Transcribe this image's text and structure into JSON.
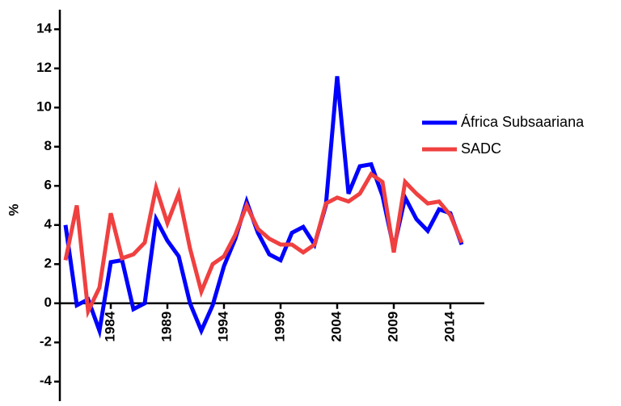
{
  "chart_data": {
    "type": "line",
    "ylabel": "%",
    "x": [
      1980,
      1981,
      1982,
      1983,
      1984,
      1985,
      1986,
      1987,
      1988,
      1989,
      1990,
      1991,
      1992,
      1993,
      1994,
      1995,
      1996,
      1997,
      1998,
      1999,
      2000,
      2001,
      2002,
      2003,
      2004,
      2005,
      2006,
      2007,
      2008,
      2009,
      2010,
      2011,
      2012,
      2013,
      2014,
      2015
    ],
    "series": [
      {
        "name": "África Subsaariana",
        "color": "#0000ff",
        "values": [
          4.0,
          -0.1,
          0.2,
          -1.4,
          2.1,
          2.2,
          -0.3,
          0.0,
          4.3,
          3.2,
          2.4,
          0.0,
          -1.4,
          -0.1,
          1.9,
          3.3,
          5.2,
          3.6,
          2.5,
          2.2,
          3.6,
          3.9,
          3.0,
          5.0,
          11.6,
          5.6,
          7.0,
          7.1,
          5.5,
          2.8,
          5.4,
          4.3,
          3.7,
          4.8,
          4.6,
          3.0
        ]
      },
      {
        "name": "SADC",
        "color": "#f04040",
        "values": [
          2.2,
          5.0,
          -0.4,
          0.8,
          4.6,
          2.3,
          2.5,
          3.1,
          5.9,
          4.1,
          5.6,
          2.8,
          0.6,
          2.0,
          2.4,
          3.5,
          5.0,
          3.8,
          3.3,
          3.0,
          3.0,
          2.6,
          3.0,
          5.1,
          5.4,
          5.2,
          5.6,
          6.6,
          6.2,
          2.6,
          6.2,
          5.6,
          5.1,
          5.2,
          4.5,
          3.1
        ]
      }
    ],
    "xlim": [
      1979.5,
      2017
    ],
    "xticks": [
      1984,
      1989,
      1994,
      1999,
      2004,
      2009,
      2014
    ],
    "ylim": [
      -5,
      15
    ],
    "yticks": [
      -4,
      -2,
      0,
      2,
      4,
      6,
      8,
      10,
      12,
      14
    ],
    "grid": false,
    "legend": "right"
  }
}
